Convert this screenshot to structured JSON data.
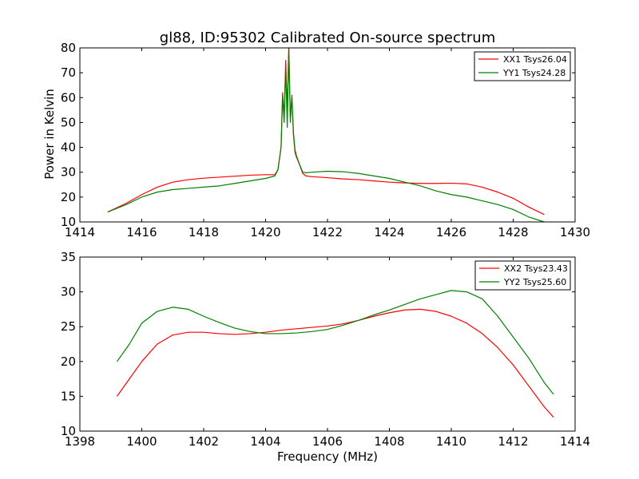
{
  "chart_data": [
    {
      "type": "line",
      "title": "gl88, ID:95302 Calibrated On-source spectrum",
      "xlabel": "",
      "ylabel": "Power in Kelvin",
      "xlim": [
        1414,
        1430
      ],
      "ylim": [
        10,
        80
      ],
      "xticks": [
        "1414",
        "1416",
        "1418",
        "1420",
        "1422",
        "1424",
        "1426",
        "1428",
        "1430"
      ],
      "yticks": [
        "10",
        "20",
        "30",
        "40",
        "50",
        "60",
        "70",
        "80"
      ],
      "legend_position": "top-right",
      "series": [
        {
          "name": "XX1 Tsys26.04",
          "color": "#ff0000",
          "x": [
            1414.9,
            1415.5,
            1416.0,
            1416.5,
            1417.0,
            1417.5,
            1418.0,
            1418.5,
            1419.0,
            1419.5,
            1420.0,
            1420.3,
            1420.4,
            1420.5,
            1420.55,
            1420.6,
            1420.65,
            1420.7,
            1420.75,
            1420.8,
            1420.85,
            1420.9,
            1420.95,
            1421.0,
            1421.1,
            1421.2,
            1421.3,
            1421.5,
            1422.0,
            1422.5,
            1423.0,
            1423.5,
            1424.0,
            1424.5,
            1425.0,
            1425.5,
            1426.0,
            1426.5,
            1427.0,
            1427.5,
            1428.0,
            1428.5,
            1429.0
          ],
          "y": [
            14,
            17.5,
            21,
            24,
            26,
            27,
            27.6,
            28,
            28.4,
            28.8,
            29,
            29,
            31,
            40,
            62,
            52,
            75,
            55,
            80,
            52,
            60,
            45,
            38,
            36,
            33,
            29.5,
            28.5,
            28.2,
            27.8,
            27.3,
            27,
            26.5,
            26,
            25.7,
            25.5,
            25.5,
            25.6,
            25.3,
            24,
            22,
            19.5,
            16,
            13
          ]
        },
        {
          "name": "YY1 Tsys24.28",
          "color": "#008000",
          "x": [
            1414.9,
            1415.5,
            1416.0,
            1416.5,
            1417.0,
            1417.5,
            1418.0,
            1418.5,
            1419.0,
            1419.5,
            1420.0,
            1420.3,
            1420.4,
            1420.5,
            1420.55,
            1420.6,
            1420.65,
            1420.7,
            1420.75,
            1420.8,
            1420.85,
            1420.9,
            1420.95,
            1421.0,
            1421.1,
            1421.2,
            1421.3,
            1421.5,
            1422.0,
            1422.5,
            1423.0,
            1423.5,
            1424.0,
            1424.5,
            1425.0,
            1425.5,
            1426.0,
            1426.5,
            1427.0,
            1427.5,
            1428.0,
            1428.5,
            1429.0
          ],
          "y": [
            14,
            17,
            20,
            22,
            23,
            23.5,
            24,
            24.5,
            25.5,
            26.5,
            27.5,
            28.5,
            31,
            40,
            61,
            50,
            72,
            48,
            80,
            50,
            61,
            46,
            39,
            36.5,
            33,
            30,
            29.8,
            30,
            30.4,
            30.2,
            29.5,
            28.5,
            27.5,
            26,
            24.5,
            22.5,
            21,
            20,
            18.5,
            17,
            15,
            12,
            10
          ]
        }
      ]
    },
    {
      "type": "line",
      "title": "",
      "xlabel": "Frequency (MHz)",
      "ylabel": "",
      "xlim": [
        1398,
        1414
      ],
      "ylim": [
        10,
        35
      ],
      "xticks": [
        "1398",
        "1400",
        "1402",
        "1404",
        "1406",
        "1408",
        "1410",
        "1412",
        "1414"
      ],
      "yticks": [
        "10",
        "15",
        "20",
        "25",
        "30",
        "35"
      ],
      "legend_position": "top-right",
      "series": [
        {
          "name": "XX2 Tsys23.43",
          "color": "#ff0000",
          "x": [
            1399.2,
            1399.6,
            1400.0,
            1400.5,
            1401.0,
            1401.5,
            1402.0,
            1402.5,
            1403.0,
            1403.5,
            1404.0,
            1404.5,
            1405.0,
            1405.5,
            1406.0,
            1406.5,
            1407.0,
            1407.5,
            1408.0,
            1408.5,
            1409.0,
            1409.5,
            1410.0,
            1410.5,
            1411.0,
            1411.5,
            1412.0,
            1412.5,
            1413.0,
            1413.3
          ],
          "y": [
            15,
            17.5,
            20,
            22.5,
            23.8,
            24.2,
            24.2,
            24.0,
            23.9,
            24.0,
            24.2,
            24.5,
            24.7,
            24.9,
            25.1,
            25.4,
            25.9,
            26.5,
            27.0,
            27.4,
            27.5,
            27.2,
            26.5,
            25.5,
            24.0,
            22.0,
            19.5,
            16.5,
            13.5,
            12
          ]
        },
        {
          "name": "YY2 Tsys25.60",
          "color": "#008000",
          "x": [
            1399.2,
            1399.6,
            1400.0,
            1400.5,
            1401.0,
            1401.5,
            1402.0,
            1402.5,
            1403.0,
            1403.5,
            1404.0,
            1404.5,
            1405.0,
            1405.5,
            1406.0,
            1406.5,
            1407.0,
            1407.5,
            1408.0,
            1408.5,
            1409.0,
            1409.5,
            1410.0,
            1410.5,
            1411.0,
            1411.5,
            1412.0,
            1412.5,
            1413.0,
            1413.3
          ],
          "y": [
            20,
            22.5,
            25.5,
            27.2,
            27.8,
            27.5,
            26.5,
            25.6,
            24.8,
            24.3,
            24.0,
            24.0,
            24.1,
            24.3,
            24.6,
            25.2,
            25.9,
            26.7,
            27.4,
            28.2,
            29.0,
            29.6,
            30.2,
            30.0,
            29.0,
            26.5,
            23.5,
            20.5,
            17,
            15.3
          ]
        }
      ]
    }
  ]
}
